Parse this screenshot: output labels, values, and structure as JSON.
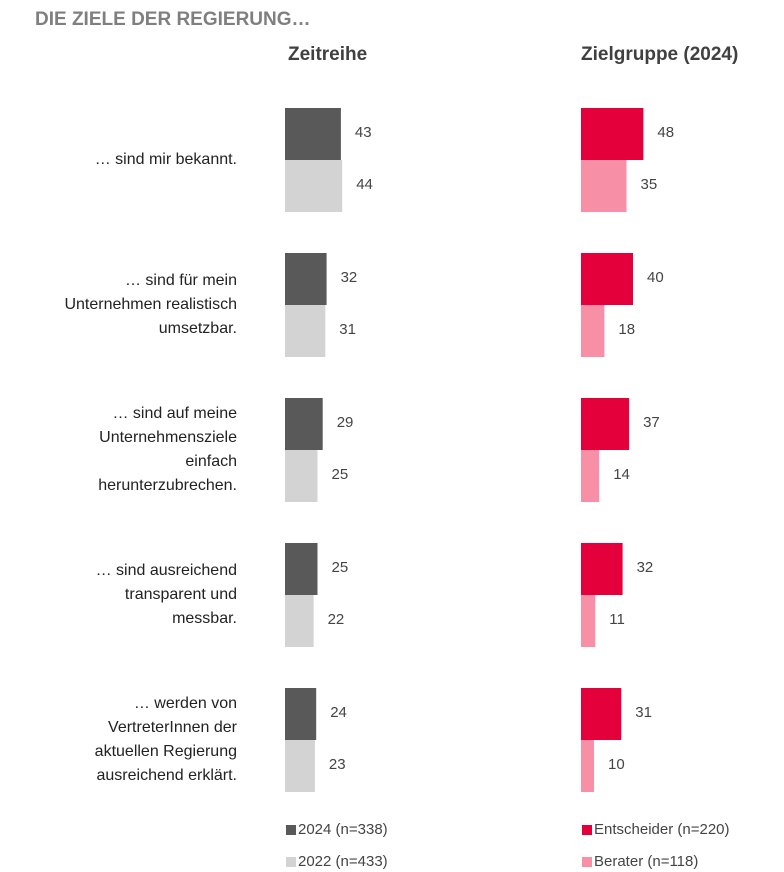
{
  "heading": "DIE ZIELE DER REGIERUNG…",
  "categories": [
    "… sind mir bekannt.",
    "… sind für mein\nUnternehmen realistisch\numsetzbar.",
    "… sind auf meine\nUnternehmensziele\neinfach\nherunterzubrechen.",
    "… sind ausreichend\ntransparent und\nmessbar.",
    "… werden von\nVertreterInnen der\naktuellen Regierung\nausreichend erklärt."
  ],
  "chart_data": [
    {
      "type": "bar",
      "title": "Zeitreihe",
      "series": [
        {
          "name": "2024 (n=338)",
          "color": "#595959",
          "values": [
            43,
            32,
            29,
            25,
            24
          ]
        },
        {
          "name": "2022 (n=433)",
          "color": "#d3d3d3",
          "values": [
            44,
            31,
            25,
            22,
            23
          ]
        }
      ]
    },
    {
      "type": "bar",
      "title": "Zielgruppe (2024)",
      "series": [
        {
          "name": "Entscheider (n=220)",
          "color": "#e4003a",
          "values": [
            48,
            40,
            37,
            32,
            31
          ]
        },
        {
          "name": "Berater (n=118)",
          "color": "#f78fa7",
          "values": [
            35,
            18,
            14,
            11,
            10
          ]
        }
      ]
    }
  ]
}
